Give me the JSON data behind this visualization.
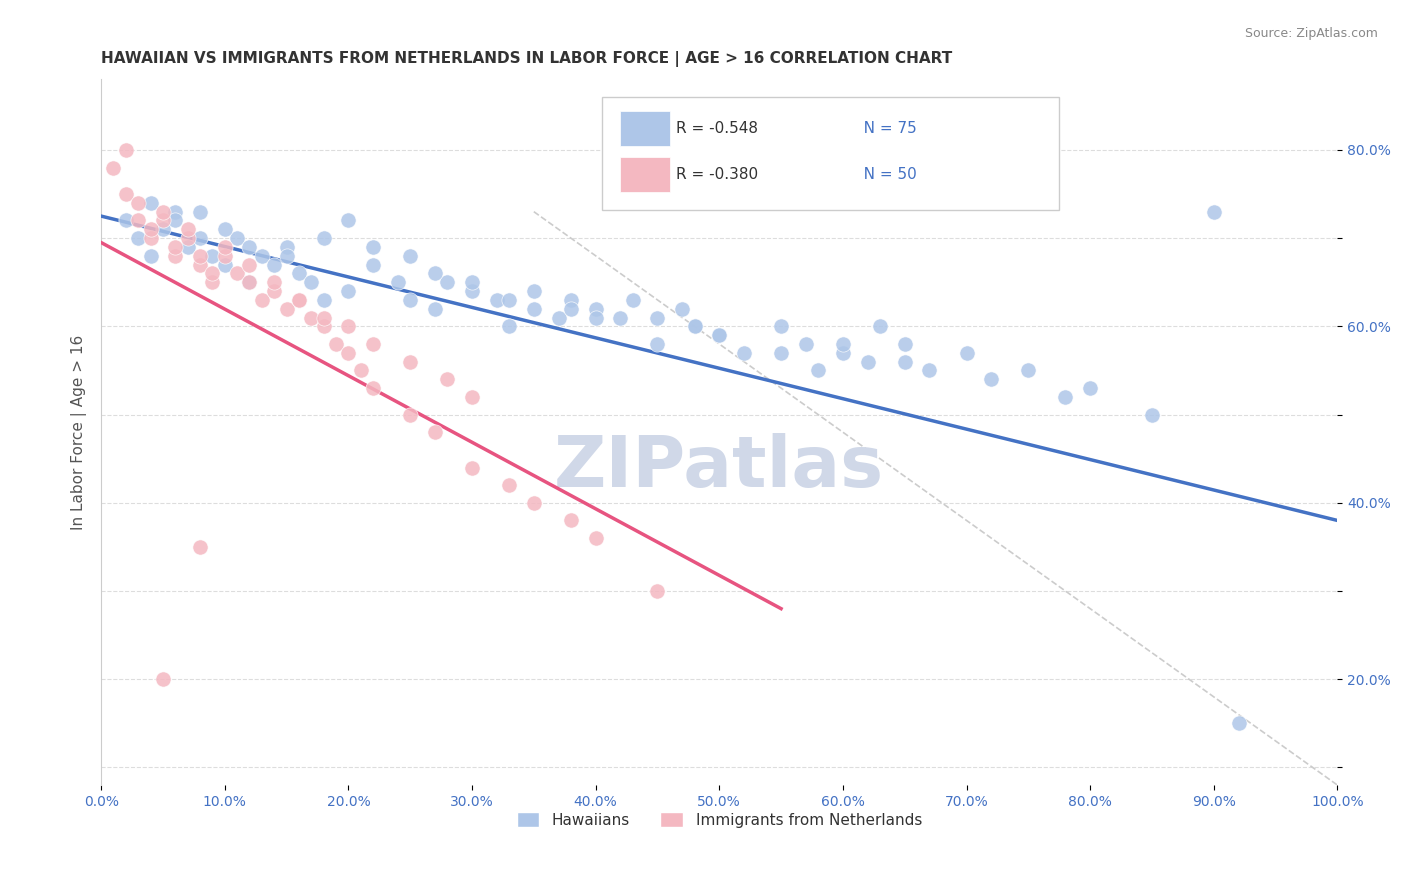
{
  "title": "HAWAIIAN VS IMMIGRANTS FROM NETHERLANDS IN LABOR FORCE | AGE > 16 CORRELATION CHART",
  "source_text": "Source: ZipAtlas.com",
  "xlabel_bottom": "",
  "ylabel": "In Labor Force | Age > 16",
  "x_ticks": [
    0.0,
    0.1,
    0.2,
    0.3,
    0.4,
    0.5,
    0.6,
    0.7,
    0.8,
    0.9,
    1.0
  ],
  "x_tick_labels": [
    "0.0%",
    "",
    "",
    "",
    "",
    "",
    "",
    "",
    "",
    "",
    "100.0%"
  ],
  "y_ticks": [
    0.1,
    0.2,
    0.3,
    0.4,
    0.5,
    0.6,
    0.7,
    0.8
  ],
  "y_tick_labels": [
    "",
    "20.0%",
    "",
    "40.0%",
    "",
    "60.0%",
    "",
    "80.0%"
  ],
  "xlim": [
    0.0,
    1.0
  ],
  "ylim": [
    0.08,
    0.88
  ],
  "legend_items": [
    {
      "label": "R = -0.548   N = 75",
      "color": "#aec6e8",
      "type": "rect"
    },
    {
      "label": "R = -0.380   N = 50",
      "color": "#f4b8c1",
      "type": "rect"
    }
  ],
  "legend_bottom": [
    {
      "label": "Hawaiians",
      "color": "#aec6e8"
    },
    {
      "label": "Immigrants from Netherlands",
      "color": "#f4b8c1"
    }
  ],
  "blue_scatter_x": [
    0.02,
    0.03,
    0.04,
    0.05,
    0.06,
    0.07,
    0.08,
    0.09,
    0.1,
    0.11,
    0.12,
    0.13,
    0.14,
    0.15,
    0.16,
    0.17,
    0.18,
    0.2,
    0.22,
    0.24,
    0.25,
    0.27,
    0.28,
    0.3,
    0.32,
    0.33,
    0.35,
    0.37,
    0.38,
    0.4,
    0.42,
    0.45,
    0.47,
    0.48,
    0.5,
    0.52,
    0.55,
    0.57,
    0.58,
    0.6,
    0.62,
    0.63,
    0.65,
    0.67,
    0.7,
    0.72,
    0.75,
    0.78,
    0.8,
    0.85,
    0.04,
    0.06,
    0.08,
    0.1,
    0.12,
    0.15,
    0.18,
    0.2,
    0.22,
    0.25,
    0.27,
    0.3,
    0.33,
    0.35,
    0.38,
    0.4,
    0.43,
    0.45,
    0.48,
    0.5,
    0.55,
    0.6,
    0.65,
    0.9,
    0.92
  ],
  "blue_scatter_y": [
    0.72,
    0.7,
    0.68,
    0.71,
    0.73,
    0.69,
    0.7,
    0.68,
    0.67,
    0.7,
    0.65,
    0.68,
    0.67,
    0.69,
    0.66,
    0.65,
    0.63,
    0.64,
    0.67,
    0.65,
    0.63,
    0.62,
    0.65,
    0.64,
    0.63,
    0.6,
    0.62,
    0.61,
    0.63,
    0.62,
    0.61,
    0.58,
    0.62,
    0.6,
    0.59,
    0.57,
    0.6,
    0.58,
    0.55,
    0.57,
    0.56,
    0.6,
    0.58,
    0.55,
    0.57,
    0.54,
    0.55,
    0.52,
    0.53,
    0.5,
    0.74,
    0.72,
    0.73,
    0.71,
    0.69,
    0.68,
    0.7,
    0.72,
    0.69,
    0.68,
    0.66,
    0.65,
    0.63,
    0.64,
    0.62,
    0.61,
    0.63,
    0.61,
    0.6,
    0.59,
    0.57,
    0.58,
    0.56,
    0.73,
    0.15
  ],
  "pink_scatter_x": [
    0.01,
    0.02,
    0.03,
    0.04,
    0.05,
    0.06,
    0.07,
    0.08,
    0.09,
    0.1,
    0.11,
    0.12,
    0.13,
    0.14,
    0.15,
    0.16,
    0.17,
    0.18,
    0.19,
    0.2,
    0.21,
    0.22,
    0.25,
    0.27,
    0.3,
    0.33,
    0.35,
    0.38,
    0.4,
    0.45,
    0.02,
    0.03,
    0.04,
    0.05,
    0.06,
    0.07,
    0.08,
    0.09,
    0.1,
    0.12,
    0.14,
    0.16,
    0.18,
    0.2,
    0.22,
    0.25,
    0.28,
    0.3,
    0.05,
    0.08
  ],
  "pink_scatter_y": [
    0.78,
    0.75,
    0.72,
    0.7,
    0.72,
    0.68,
    0.7,
    0.67,
    0.65,
    0.68,
    0.66,
    0.65,
    0.63,
    0.64,
    0.62,
    0.63,
    0.61,
    0.6,
    0.58,
    0.57,
    0.55,
    0.53,
    0.5,
    0.48,
    0.44,
    0.42,
    0.4,
    0.38,
    0.36,
    0.3,
    0.8,
    0.74,
    0.71,
    0.73,
    0.69,
    0.71,
    0.68,
    0.66,
    0.69,
    0.67,
    0.65,
    0.63,
    0.61,
    0.6,
    0.58,
    0.56,
    0.54,
    0.52,
    0.2,
    0.35
  ],
  "blue_line_x": [
    0.0,
    1.0
  ],
  "blue_line_y_start": 0.725,
  "blue_line_y_end": 0.38,
  "pink_line_x": [
    0.0,
    0.55
  ],
  "pink_line_y_start": 0.695,
  "pink_line_y_end": 0.28,
  "ref_line_x": [
    0.35,
    1.0
  ],
  "ref_line_y_start": 0.73,
  "ref_line_y_end": 0.08,
  "blue_color": "#aec6e8",
  "blue_line_color": "#4472c4",
  "pink_color": "#f4b8c1",
  "pink_line_color": "#e75480",
  "ref_line_color": "#cccccc",
  "watermark": "ZIPatlas",
  "watermark_color": "#d0d8e8",
  "background_color": "#ffffff",
  "grid_color": "#dddddd",
  "title_color": "#333333",
  "axis_label_color": "#555555",
  "tick_label_color": "#4472c4",
  "source_color": "#888888",
  "title_fontsize": 11,
  "legend_fontsize": 11,
  "axis_label_fontsize": 11,
  "tick_fontsize": 10
}
